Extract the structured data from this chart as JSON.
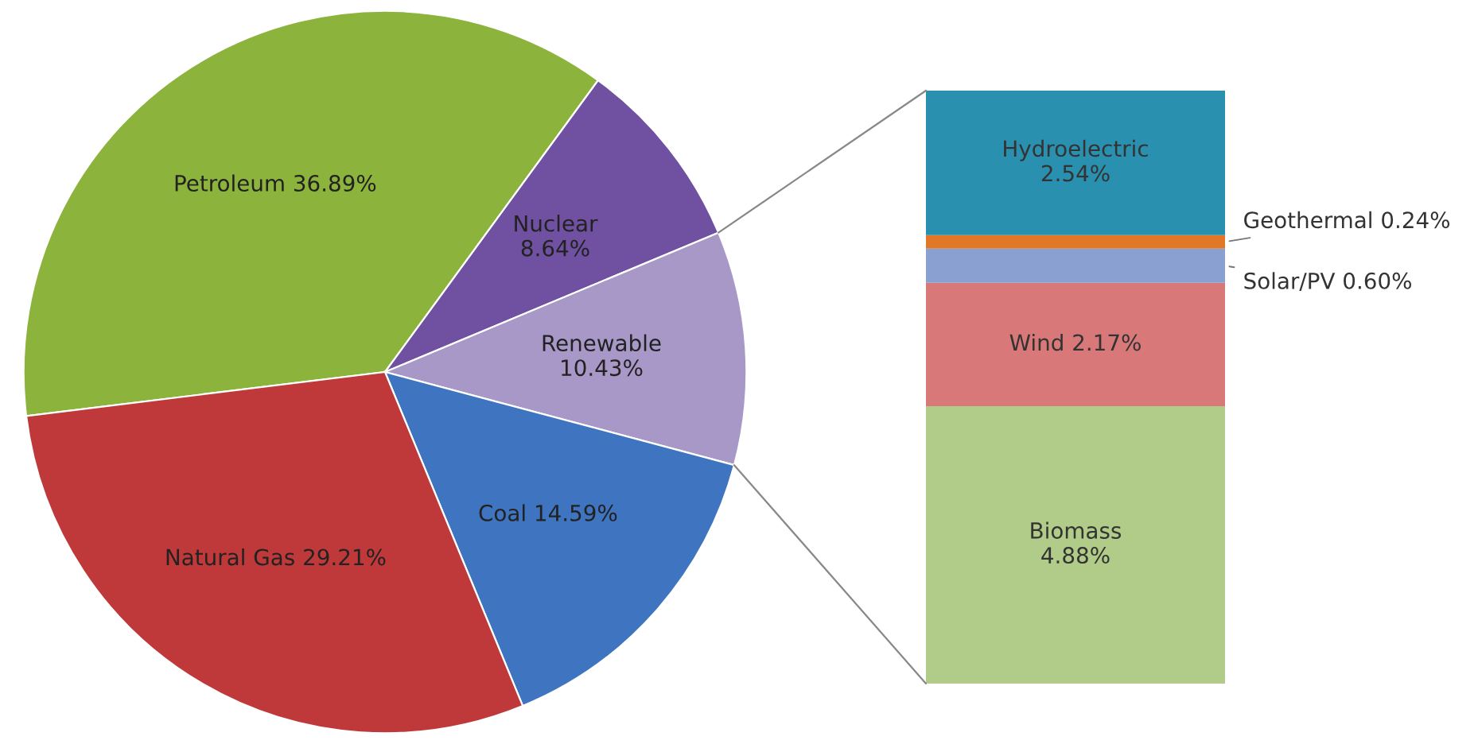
{
  "chart_data": [
    {
      "type": "pie",
      "categories": [
        "Petroleum",
        "Nuclear",
        "Renewable",
        "Coal",
        "Natural Gas"
      ],
      "values": [
        36.89,
        8.64,
        10.43,
        14.59,
        29.21
      ],
      "value_labels": [
        "36.89%",
        "8.64%",
        "10.43%",
        "14.59%",
        "29.21%"
      ],
      "colors": [
        "#8cb33c",
        "#7050a0",
        "#a898c8",
        "#3f74c0",
        "#c0393a"
      ]
    },
    {
      "type": "bar",
      "stacked": true,
      "categories": [
        null
      ],
      "series": [
        {
          "name": "Biomass",
          "color": "#b0cc88",
          "values": [
            4.88
          ],
          "value_labels": [
            "4.88%"
          ]
        },
        {
          "name": "Wind",
          "color": "#d87878",
          "values": [
            2.17
          ],
          "value_labels": [
            "2.17%"
          ]
        },
        {
          "name": "Solar/PV",
          "color": "#8aa0d0",
          "values": [
            0.6
          ],
          "value_labels": [
            "0.60%"
          ]
        },
        {
          "name": "Geothermal",
          "color": "#e07828",
          "values": [
            0.24
          ],
          "value_labels": [
            "0.24%"
          ]
        },
        {
          "name": "Hydroelectric",
          "color": "#2a90b0",
          "values": [
            2.54
          ],
          "value_labels": [
            "2.54%"
          ]
        }
      ]
    }
  ]
}
